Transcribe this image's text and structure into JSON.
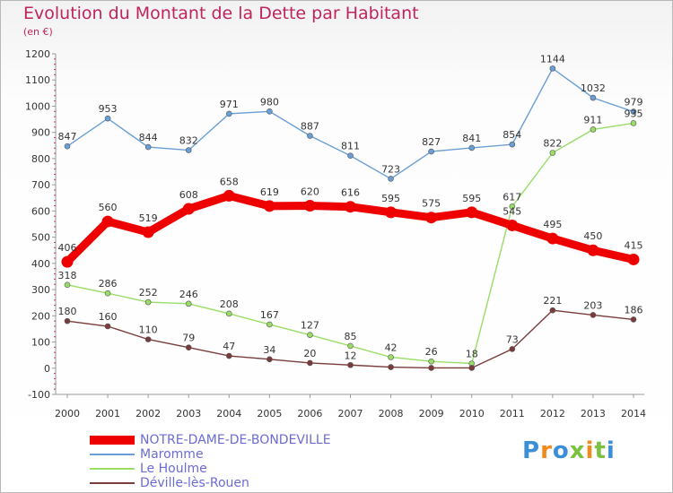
{
  "title": "Evolution du Montant de la Dette par Habitant",
  "subtitle": "(en €)",
  "logo": "Proxiti",
  "chart_data": {
    "type": "line",
    "x": [
      "2000",
      "2001",
      "2002",
      "2003",
      "2004",
      "2005",
      "2006",
      "2007",
      "2008",
      "2009",
      "2010",
      "2011",
      "2012",
      "2013",
      "2014"
    ],
    "ylim": [
      -100,
      1200
    ],
    "yticks": [
      -100,
      0,
      100,
      200,
      300,
      400,
      500,
      600,
      700,
      800,
      900,
      1000,
      1100,
      1200
    ],
    "grid": false,
    "legend_position": "bottom-left",
    "series": [
      {
        "name": "NOTRE-DAME-DE-BONDEVILLE",
        "color": "#ee0000",
        "bold": true,
        "values": [
          406,
          560,
          519,
          608,
          658,
          619,
          620,
          616,
          595,
          575,
          595,
          545,
          495,
          450,
          415
        ]
      },
      {
        "name": "Maromme",
        "color": "#6a9ed6",
        "bold": false,
        "values": [
          847,
          953,
          844,
          832,
          971,
          980,
          887,
          811,
          723,
          827,
          841,
          854,
          1144,
          1032,
          979
        ]
      },
      {
        "name": "Le Houlme",
        "color": "#99dd66",
        "bold": false,
        "values": [
          318,
          286,
          252,
          246,
          208,
          167,
          127,
          85,
          42,
          26,
          18,
          617,
          822,
          911,
          935
        ]
      },
      {
        "name": "Déville-lès-Rouen",
        "color": "#7a3b3b",
        "bold": false,
        "values": [
          180,
          160,
          110,
          79,
          47,
          34,
          20,
          12,
          4,
          1,
          1,
          73,
          221,
          203,
          186
        ]
      }
    ],
    "data_labels": [
      [
        "406",
        "560",
        "519",
        "608",
        "658",
        "619",
        "620",
        "616",
        "595",
        "575",
        "595",
        "545",
        "495",
        "450",
        "415"
      ],
      [
        "847",
        "953",
        "844",
        "832",
        "971",
        "980",
        "887",
        "811",
        "723",
        "827",
        "841",
        "854",
        "1144",
        "1032",
        "979"
      ],
      [
        "318",
        "286",
        "252",
        "246",
        "208",
        "167",
        "127",
        "85",
        "42",
        "26",
        "18",
        "617",
        "822",
        "911",
        "935"
      ],
      [
        "180",
        "160",
        "110",
        "79",
        "47",
        "34",
        "20",
        "12",
        "",
        "",
        "",
        "73",
        "221",
        "203",
        "186"
      ]
    ]
  }
}
